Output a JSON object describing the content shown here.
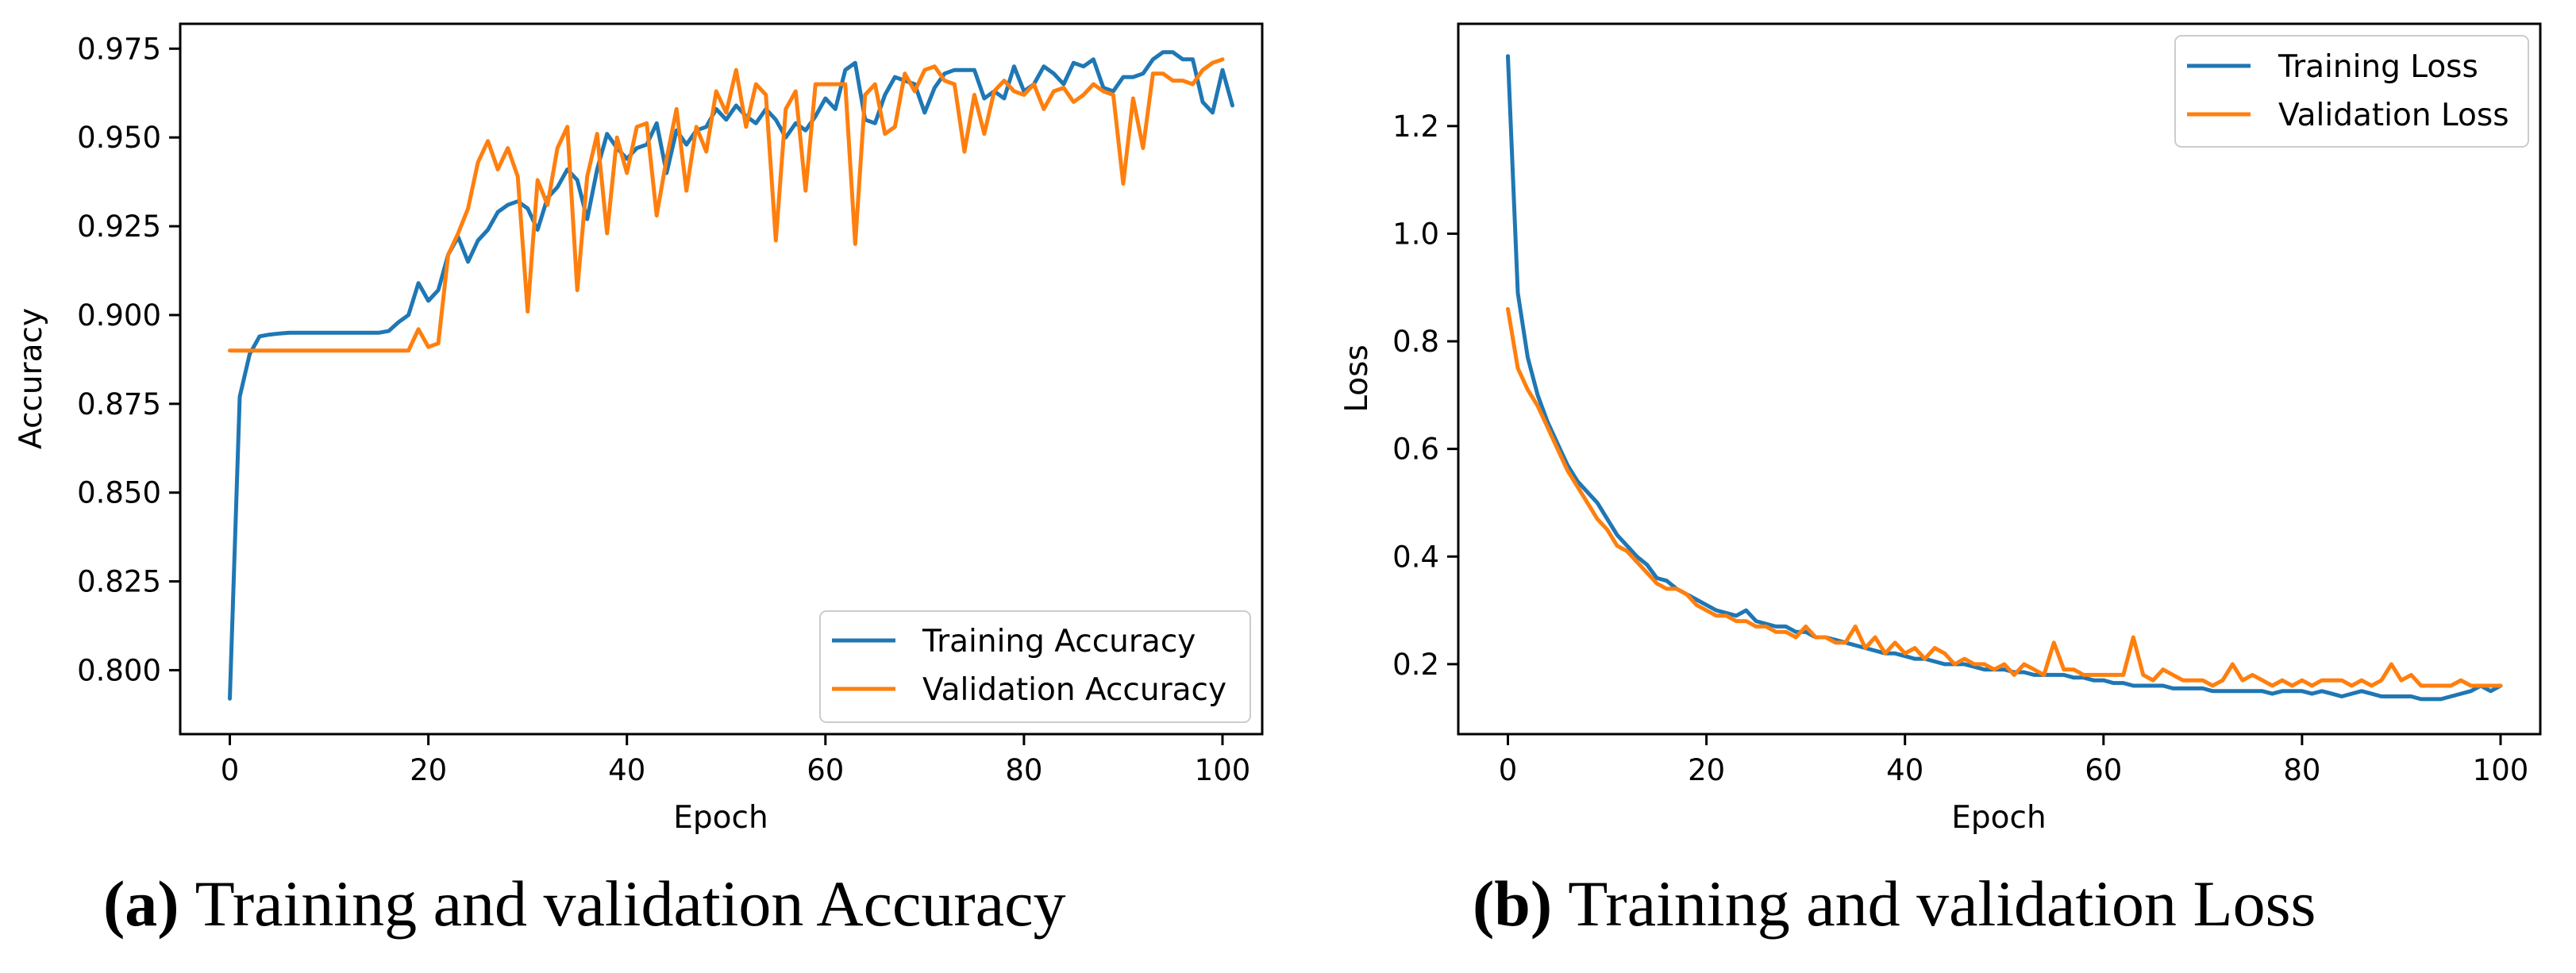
{
  "chart_data": [
    {
      "id": "a",
      "type": "line",
      "caption": {
        "letter": "(a)",
        "text": "Training and validation Accuracy"
      },
      "xlabel": "Epoch",
      "ylabel": "Accuracy",
      "xlim": [
        -5,
        104
      ],
      "ylim": [
        0.782,
        0.982
      ],
      "xticks": [
        0,
        20,
        40,
        60,
        80,
        100
      ],
      "yticks": [
        0.8,
        0.825,
        0.85,
        0.875,
        0.9,
        0.925,
        0.95,
        0.975
      ],
      "ytick_labels": [
        "0.800",
        "0.825",
        "0.850",
        "0.875",
        "0.900",
        "0.925",
        "0.950",
        "0.975"
      ],
      "legend_position": "bottom-right",
      "series": [
        {
          "name": "Training Accuracy",
          "color": "#1f77b4",
          "values": [
            0.792,
            0.877,
            0.889,
            0.894,
            0.8945,
            0.8948,
            0.895,
            0.895,
            0.895,
            0.895,
            0.895,
            0.895,
            0.895,
            0.895,
            0.895,
            0.895,
            0.8955,
            0.898,
            0.9,
            0.909,
            0.904,
            0.907,
            0.917,
            0.922,
            0.915,
            0.921,
            0.924,
            0.929,
            0.931,
            0.932,
            0.93,
            0.924,
            0.933,
            0.936,
            0.941,
            0.938,
            0.927,
            0.941,
            0.951,
            0.947,
            0.944,
            0.947,
            0.948,
            0.954,
            0.94,
            0.952,
            0.948,
            0.952,
            0.953,
            0.958,
            0.955,
            0.959,
            0.956,
            0.954,
            0.958,
            0.955,
            0.95,
            0.954,
            0.952,
            0.956,
            0.961,
            0.958,
            0.969,
            0.971,
            0.955,
            0.954,
            0.962,
            0.967,
            0.966,
            0.965,
            0.957,
            0.964,
            0.968,
            0.969,
            0.969,
            0.969,
            0.961,
            0.963,
            0.961,
            0.97,
            0.963,
            0.965,
            0.97,
            0.968,
            0.965,
            0.971,
            0.97,
            0.972,
            0.964,
            0.963,
            0.967,
            0.967,
            0.968,
            0.972,
            0.974,
            0.974,
            0.972,
            0.972,
            0.96,
            0.957,
            0.969,
            0.959
          ]
        },
        {
          "name": "Validation Accuracy",
          "color": "#ff7f0e",
          "values": [
            0.89,
            0.89,
            0.89,
            0.89,
            0.89,
            0.89,
            0.89,
            0.89,
            0.89,
            0.89,
            0.89,
            0.89,
            0.89,
            0.89,
            0.89,
            0.89,
            0.89,
            0.89,
            0.89,
            0.896,
            0.891,
            0.892,
            0.917,
            0.923,
            0.93,
            0.943,
            0.949,
            0.941,
            0.947,
            0.939,
            0.901,
            0.938,
            0.931,
            0.947,
            0.953,
            0.907,
            0.939,
            0.951,
            0.923,
            0.95,
            0.94,
            0.953,
            0.954,
            0.928,
            0.944,
            0.958,
            0.935,
            0.953,
            0.946,
            0.963,
            0.957,
            0.969,
            0.953,
            0.965,
            0.962,
            0.921,
            0.958,
            0.963,
            0.935,
            0.965,
            0.965,
            0.965,
            0.965,
            0.92,
            0.962,
            0.965,
            0.951,
            0.953,
            0.968,
            0.963,
            0.969,
            0.97,
            0.966,
            0.965,
            0.946,
            0.962,
            0.951,
            0.963,
            0.966,
            0.963,
            0.962,
            0.965,
            0.958,
            0.963,
            0.964,
            0.96,
            0.962,
            0.965,
            0.963,
            0.962,
            0.937,
            0.961,
            0.947,
            0.968,
            0.968,
            0.966,
            0.966,
            0.965,
            0.969,
            0.971,
            0.972
          ]
        }
      ]
    },
    {
      "id": "b",
      "type": "line",
      "caption": {
        "letter": "(b)",
        "text": "Training and validation Loss"
      },
      "xlabel": "Epoch",
      "ylabel": "Loss",
      "xlim": [
        -5,
        104
      ],
      "ylim": [
        0.07,
        1.39
      ],
      "xticks": [
        0,
        20,
        40,
        60,
        80,
        100
      ],
      "yticks": [
        0.2,
        0.4,
        0.6,
        0.8,
        1.0,
        1.2
      ],
      "ytick_labels": [
        "0.2",
        "0.4",
        "0.6",
        "0.8",
        "1.0",
        "1.2"
      ],
      "legend_position": "top-right",
      "series": [
        {
          "name": "Training Loss",
          "color": "#1f77b4",
          "values": [
            1.33,
            0.89,
            0.77,
            0.7,
            0.65,
            0.61,
            0.57,
            0.54,
            0.52,
            0.5,
            0.47,
            0.44,
            0.42,
            0.4,
            0.385,
            0.36,
            0.355,
            0.34,
            0.33,
            0.32,
            0.31,
            0.3,
            0.295,
            0.29,
            0.3,
            0.28,
            0.275,
            0.27,
            0.27,
            0.26,
            0.26,
            0.25,
            0.25,
            0.245,
            0.24,
            0.235,
            0.23,
            0.225,
            0.22,
            0.22,
            0.215,
            0.21,
            0.21,
            0.205,
            0.2,
            0.2,
            0.2,
            0.195,
            0.19,
            0.19,
            0.19,
            0.185,
            0.185,
            0.18,
            0.18,
            0.18,
            0.18,
            0.175,
            0.175,
            0.17,
            0.17,
            0.165,
            0.165,
            0.16,
            0.16,
            0.16,
            0.16,
            0.155,
            0.155,
            0.155,
            0.155,
            0.15,
            0.15,
            0.15,
            0.15,
            0.15,
            0.15,
            0.145,
            0.15,
            0.15,
            0.15,
            0.145,
            0.15,
            0.145,
            0.14,
            0.145,
            0.15,
            0.145,
            0.14,
            0.14,
            0.14,
            0.14,
            0.135,
            0.135,
            0.135,
            0.14,
            0.145,
            0.15,
            0.16,
            0.15,
            0.16
          ]
        },
        {
          "name": "Validation Loss",
          "color": "#ff7f0e",
          "values": [
            0.86,
            0.75,
            0.71,
            0.68,
            0.64,
            0.6,
            0.56,
            0.53,
            0.5,
            0.47,
            0.45,
            0.42,
            0.41,
            0.39,
            0.37,
            0.35,
            0.34,
            0.34,
            0.33,
            0.31,
            0.3,
            0.29,
            0.29,
            0.28,
            0.28,
            0.27,
            0.27,
            0.26,
            0.26,
            0.25,
            0.27,
            0.25,
            0.25,
            0.24,
            0.24,
            0.27,
            0.23,
            0.25,
            0.22,
            0.24,
            0.22,
            0.23,
            0.21,
            0.23,
            0.22,
            0.2,
            0.21,
            0.2,
            0.2,
            0.19,
            0.2,
            0.18,
            0.2,
            0.19,
            0.18,
            0.24,
            0.19,
            0.19,
            0.18,
            0.18,
            0.18,
            0.18,
            0.18,
            0.25,
            0.18,
            0.17,
            0.19,
            0.18,
            0.17,
            0.17,
            0.17,
            0.16,
            0.17,
            0.2,
            0.17,
            0.18,
            0.17,
            0.16,
            0.17,
            0.16,
            0.17,
            0.16,
            0.17,
            0.17,
            0.17,
            0.16,
            0.17,
            0.16,
            0.17,
            0.2,
            0.17,
            0.18,
            0.16,
            0.16,
            0.16,
            0.16,
            0.17,
            0.16,
            0.16,
            0.16,
            0.16
          ]
        }
      ]
    }
  ]
}
